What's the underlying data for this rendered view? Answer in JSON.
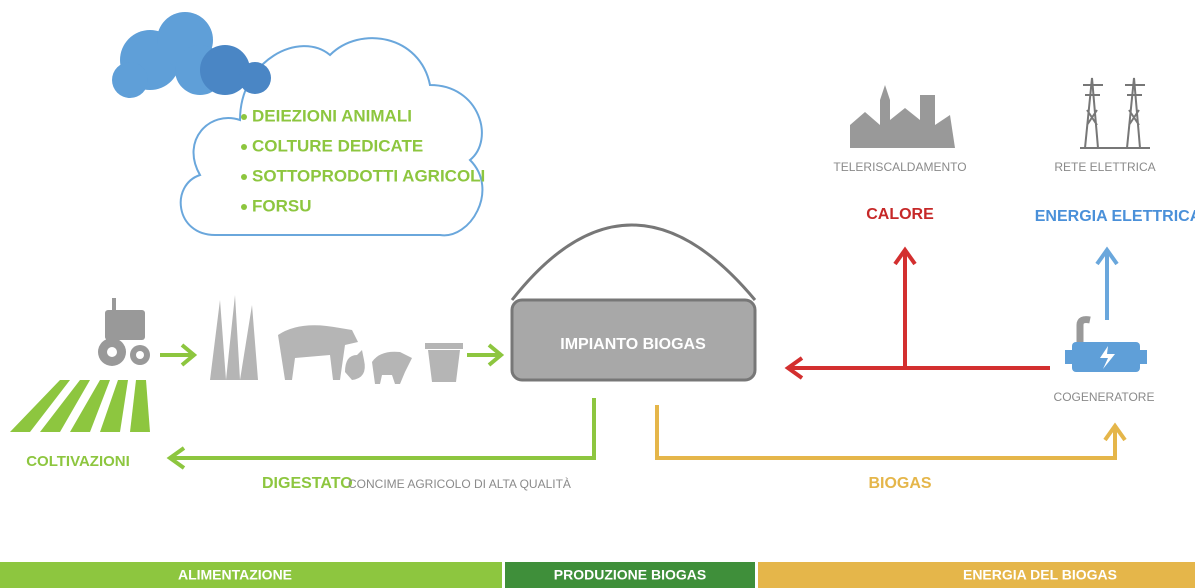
{
  "cloud": {
    "items": [
      "DEIEZIONI ANIMALI",
      "COLTURE DEDICATE",
      "SOTTOPRODOTTI AGRICOLI",
      "FORSU"
    ]
  },
  "plant": {
    "label": "IMPIANTO BIOGAS"
  },
  "outputs": {
    "heat": {
      "source": "TELERISCALDAMENTO",
      "label": "CALORE"
    },
    "power": {
      "source": "RETE ELETTRICA",
      "label": "ENERGIA ELETTRICA"
    },
    "cogenerator": "COGENERATORE"
  },
  "flows": {
    "crops": "COLTIVAZIONI",
    "digestate": "DIGESTATO",
    "digestate_note": "CONCIME AGRICOLO DI ALTA QUALITÀ",
    "biogas": "BIOGAS"
  },
  "footer": {
    "sections": [
      "ALIMENTAZIONE",
      "PRODUZIONE BIOGAS",
      "ENERGIA DEL BIOGAS"
    ]
  }
}
